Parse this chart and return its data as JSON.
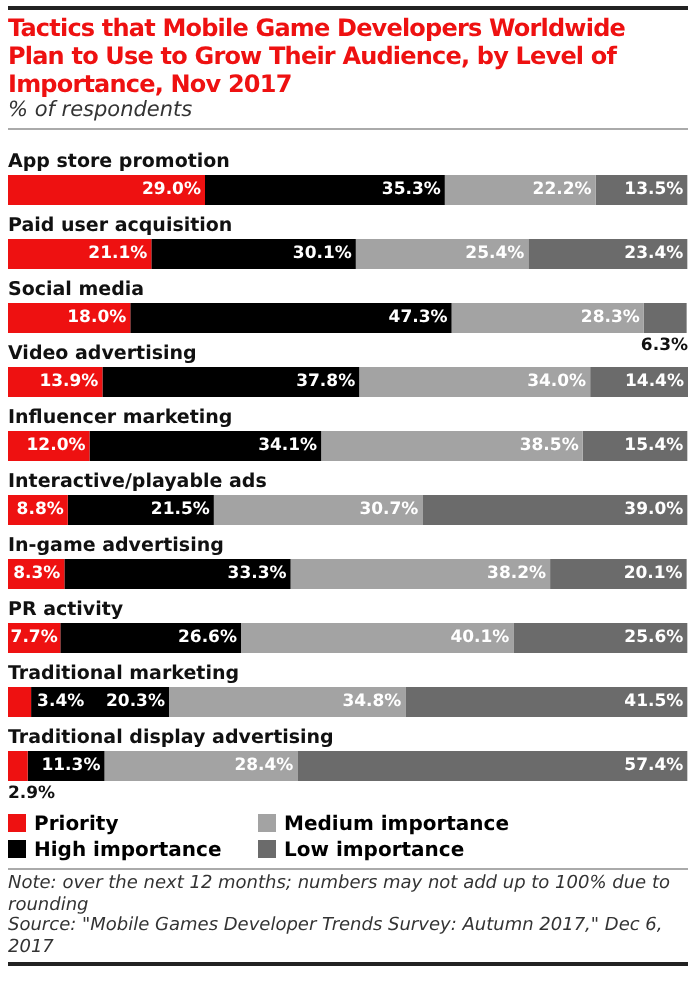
{
  "chart_data": {
    "type": "bar",
    "orientation": "horizontal",
    "stacked": true,
    "title": "Tactics that Mobile Game Developers Worldwide Plan to Use to Grow Their Audience, by Level of Importance, Nov 2017",
    "subtitle": "% of respondents",
    "categories": [
      "App store promotion",
      "Paid user acquisition",
      "Social media",
      "Video advertising",
      "Influencer marketing",
      "Interactive/playable ads",
      "In-game advertising",
      "PR activity",
      "Traditional marketing",
      "Traditional display advertising"
    ],
    "series": [
      {
        "name": "Priority",
        "color": "#ee1111",
        "values": [
          29.0,
          21.1,
          18.0,
          13.9,
          12.0,
          8.8,
          8.3,
          7.7,
          3.4,
          2.9
        ],
        "value_labels": [
          "29.0%",
          "21.1%",
          "18.0%",
          "13.9%",
          "12.0%",
          "8.8%",
          "8.3%",
          "7.7%",
          "3.4%",
          "2.9%"
        ]
      },
      {
        "name": "High importance",
        "color": "#000000",
        "values": [
          35.3,
          30.1,
          47.3,
          37.8,
          34.1,
          21.5,
          33.3,
          26.6,
          20.3,
          11.3
        ],
        "value_labels": [
          "35.3%",
          "30.1%",
          "47.3%",
          "37.8%",
          "34.1%",
          "21.5%",
          "33.3%",
          "26.6%",
          "20.3%",
          "11.3%"
        ]
      },
      {
        "name": "Medium importance",
        "color": "#a3a3a3",
        "values": [
          22.2,
          25.4,
          28.3,
          34.0,
          38.5,
          30.7,
          38.2,
          40.1,
          34.8,
          28.4
        ],
        "value_labels": [
          "22.2%",
          "25.4%",
          "28.3%",
          "34.0%",
          "38.5%",
          "30.7%",
          "38.2%",
          "40.1%",
          "34.8%",
          "28.4%"
        ]
      },
      {
        "name": "Low importance",
        "color": "#6b6b6b",
        "values": [
          13.5,
          23.4,
          6.3,
          14.4,
          15.4,
          39.0,
          20.1,
          25.6,
          41.5,
          57.4
        ],
        "value_labels": [
          "13.5%",
          "23.4%",
          "6.3%",
          "14.4%",
          "15.4%",
          "39.0%",
          "20.1%",
          "25.6%",
          "41.5%",
          "57.4%"
        ]
      }
    ],
    "legend": "bottom",
    "xlim": [
      0,
      100.1
    ],
    "annotations": [
      "Note: over the next 12 months; numbers may not add up to 100% due to rounding",
      "Source: \"Mobile Games Developer Trends Survey: Autumn 2017,\" Dec 6, 2017"
    ]
  }
}
